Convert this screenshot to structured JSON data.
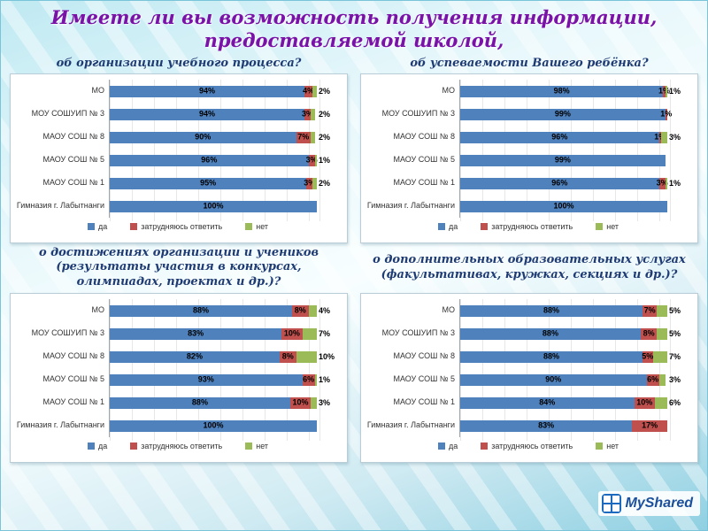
{
  "slide": {
    "title_line1": "Имеете ли вы возможность получения информации,",
    "title_line2": "предоставляемой школой,",
    "watermark": "MyShared"
  },
  "legend": [
    {
      "key": "da",
      "label": "да",
      "color": "#4F81BD"
    },
    {
      "key": "zatrud",
      "label": "затрудняюсь ответить",
      "color": "#C0504D"
    },
    {
      "key": "net",
      "label": "нет",
      "color": "#9BBB59"
    }
  ],
  "chart_data": [
    {
      "type": "stacked-bar-horizontal",
      "title": "об организации учебного процесса?",
      "categories": [
        "МО",
        "МОУ СОШУИП № 3",
        "МАОУ СОШ № 8",
        "МАОУ СОШ № 5",
        "МАОУ СОШ № 1",
        "Гимназия г. Лабытнанги"
      ],
      "series": [
        {
          "name": "да",
          "color": "#4F81BD",
          "values": [
            94,
            94,
            90,
            96,
            95,
            100
          ]
        },
        {
          "name": "затрудняюсь ответить",
          "color": "#C0504D",
          "values": [
            4,
            3,
            7,
            3,
            3,
            0
          ]
        },
        {
          "name": "нет",
          "color": "#9BBB59",
          "values": [
            2,
            2,
            2,
            1,
            2,
            0
          ]
        }
      ],
      "xlim": [
        0,
        100
      ],
      "legend_position": "bottom",
      "value_suffix": "%"
    },
    {
      "type": "stacked-bar-horizontal",
      "title": "об успеваемости Вашего ребёнка?",
      "categories": [
        "МО",
        "МОУ СОШУИП № 3",
        "МАОУ СОШ № 8",
        "МАОУ СОШ № 5",
        "МАОУ СОШ № 1",
        "Гимназия г. Лабытнанги"
      ],
      "series": [
        {
          "name": "да",
          "color": "#4F81BD",
          "values": [
            98,
            99,
            96,
            99,
            96,
            100
          ]
        },
        {
          "name": "затрудняюсь ответить",
          "color": "#C0504D",
          "values": [
            1,
            1,
            1,
            0,
            3,
            0
          ]
        },
        {
          "name": "нет",
          "color": "#9BBB59",
          "values": [
            1,
            0,
            3,
            0,
            1,
            0
          ]
        }
      ],
      "xlim": [
        0,
        100
      ],
      "legend_position": "bottom",
      "value_suffix": "%"
    },
    {
      "type": "stacked-bar-horizontal",
      "title": "о достижениях организации и учеников (результаты участия в конкурсах, олимпиадах, проектах и др.)?",
      "categories": [
        "МО",
        "МОУ СОШУИП № 3",
        "МАОУ СОШ № 8",
        "МАОУ СОШ № 5",
        "МАОУ СОШ № 1",
        "Гимназия г. Лабытнанги"
      ],
      "series": [
        {
          "name": "да",
          "color": "#4F81BD",
          "values": [
            88,
            83,
            82,
            93,
            88,
            100
          ]
        },
        {
          "name": "затрудняюсь ответить",
          "color": "#C0504D",
          "values": [
            8,
            10,
            8,
            6,
            10,
            0
          ]
        },
        {
          "name": "нет",
          "color": "#9BBB59",
          "values": [
            4,
            7,
            10,
            1,
            3,
            0
          ]
        }
      ],
      "xlim": [
        0,
        100
      ],
      "legend_position": "bottom",
      "value_suffix": "%"
    },
    {
      "type": "stacked-bar-horizontal",
      "title": "о дополнительных образовательных услугах (факультативах, кружках, секциях и др.)?",
      "categories": [
        "МО",
        "МОУ СОШУИП № 3",
        "МАОУ СОШ № 8",
        "МАОУ СОШ № 5",
        "МАОУ СОШ № 1",
        "Гимназия г. Лабытнанги"
      ],
      "series": [
        {
          "name": "да",
          "color": "#4F81BD",
          "values": [
            88,
            88,
            88,
            90,
            84,
            83
          ]
        },
        {
          "name": "затрудняюсь ответить",
          "color": "#C0504D",
          "values": [
            7,
            8,
            5,
            6,
            10,
            17
          ]
        },
        {
          "name": "нет",
          "color": "#9BBB59",
          "values": [
            5,
            5,
            7,
            3,
            6,
            0
          ]
        }
      ],
      "xlim": [
        0,
        100
      ],
      "legend_position": "bottom",
      "value_suffix": "%"
    }
  ]
}
